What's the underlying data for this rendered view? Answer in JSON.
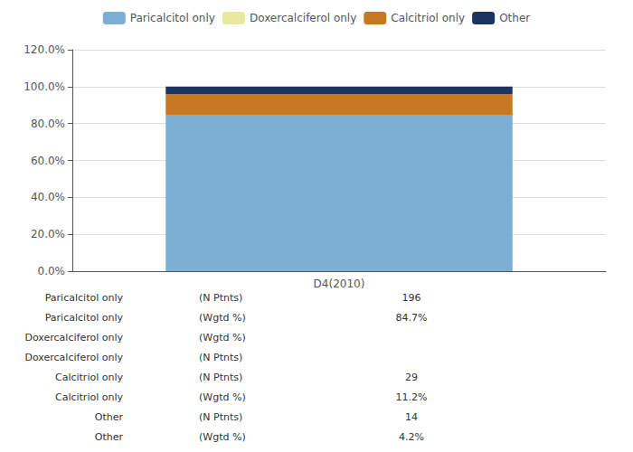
{
  "chart_data": {
    "type": "bar",
    "stacked": true,
    "grid": true,
    "legend": "top",
    "categories": [
      "D4(2010)"
    ],
    "series": [
      {
        "name": "Paricalcitol only",
        "color": "#7BAFD4",
        "values": [
          84.7
        ]
      },
      {
        "name": "Doxercalciferol only",
        "color": "#E8E8A0",
        "values": [
          0.0
        ]
      },
      {
        "name": "Calcitriol only",
        "color": "#C87820",
        "values": [
          11.2
        ]
      },
      {
        "name": "Other",
        "color": "#1A3560",
        "values": [
          4.2
        ]
      }
    ],
    "ylim": [
      0,
      120
    ],
    "yticks": [
      {
        "value": 0,
        "label": "0.0%"
      },
      {
        "value": 20,
        "label": "20.0%"
      },
      {
        "value": 40,
        "label": "40.0%"
      },
      {
        "value": 60,
        "label": "60.0%"
      },
      {
        "value": 80,
        "label": "80.0%"
      },
      {
        "value": 100,
        "label": "100.0%"
      },
      {
        "value": 120,
        "label": "120.0%"
      }
    ],
    "annotations": [
      {
        "label": "Paricalcitol only",
        "sublabel": "(N Ptnts)",
        "value": "196"
      },
      {
        "label": "Paricalcitol only",
        "sublabel": "(Wgtd %)",
        "value": "84.7%"
      },
      {
        "label": "Doxercalciferol only",
        "sublabel": "(Wgtd %)",
        "value": null
      },
      {
        "label": "Doxercalciferol only",
        "sublabel": "(N Ptnts)",
        "value": null
      },
      {
        "label": "Calcitriol only",
        "sublabel": "(N Ptnts)",
        "value": "29"
      },
      {
        "label": "Calcitriol only",
        "sublabel": "(Wgtd %)",
        "value": "11.2%"
      },
      {
        "label": "Other",
        "sublabel": "(N Ptnts)",
        "value": "14"
      },
      {
        "label": "Other",
        "sublabel": "(Wgtd %)",
        "value": "4.2%"
      }
    ]
  }
}
